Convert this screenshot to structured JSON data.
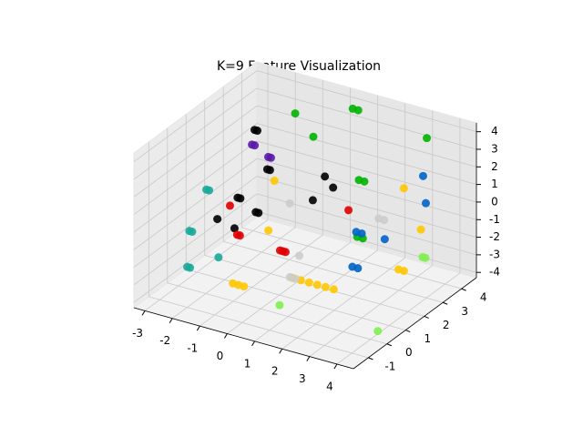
{
  "chart_data": {
    "type": "scatter3d",
    "title": "K=9 Feature Visualization",
    "xlim": [
      -3.4,
      4.6
    ],
    "ylim": [
      -1.8,
      4.8
    ],
    "zlim": [
      -4.3,
      4.5
    ],
    "xticks": [
      -3,
      -2,
      -1,
      0,
      1,
      2,
      3,
      4
    ],
    "yticks": [
      -1,
      0,
      1,
      2,
      3,
      4
    ],
    "zticks": [
      -4,
      -3,
      -2,
      -1,
      0,
      1,
      2,
      3,
      4
    ],
    "grid": true,
    "series": [
      {
        "color": "#000000",
        "x": [
          -2.6,
          -2.5,
          -1.8,
          -1.7,
          -2.2,
          -2.1,
          -2.6,
          -1.2,
          -1.1,
          -1.5,
          0.3,
          0.6,
          0.2
        ],
        "y": [
          3.5,
          3.5,
          3.0,
          3.0,
          2.0,
          2.0,
          1.5,
          1.5,
          1.5,
          0.8,
          3.0,
          3.0,
          2.5
        ],
        "z": [
          2.0,
          2.0,
          0.5,
          0.5,
          -0.5,
          -0.5,
          -1.5,
          -0.5,
          -0.5,
          -1.0,
          1.0,
          0.5,
          0.0
        ]
      },
      {
        "color": "#5a1aa8",
        "x": [
          -2.9,
          -2.8,
          -1.9,
          -1.8
        ],
        "y": [
          3.8,
          3.8,
          3.2,
          3.2
        ],
        "z": [
          0.8,
          0.8,
          1.0,
          1.0
        ]
      },
      {
        "color": "#1aa89a",
        "x": [
          -3.0,
          -2.9,
          -2.6,
          -2.5,
          -1.2,
          -2.0,
          -1.9
        ],
        "y": [
          1.5,
          1.5,
          0.0,
          0.0,
          -0.5,
          -1.0,
          -1.0
        ],
        "z": [
          0.0,
          0.0,
          -1.0,
          -1.0,
          -1.5,
          -2.0,
          -2.0
        ]
      },
      {
        "color": "#e00000",
        "x": [
          -1.8,
          -1.2,
          -1.1,
          0.5,
          0.6,
          0.7,
          1.5
        ],
        "y": [
          1.0,
          0.5,
          0.5,
          0.3,
          0.3,
          0.3,
          2.5
        ],
        "z": [
          0.0,
          -1.0,
          -1.0,
          -1.0,
          -1.0,
          -1.0,
          0.0
        ]
      },
      {
        "color": "#ffc800",
        "x": [
          -1.2,
          -0.4,
          -0.2,
          0.0,
          0.2,
          1.5,
          1.8,
          2.1,
          2.4,
          2.7,
          3.0,
          2.5,
          3.8,
          4.0,
          4.2
        ],
        "y": [
          2.5,
          1.0,
          -1.2,
          -1.2,
          -1.2,
          -0.5,
          -0.5,
          -0.5,
          -0.5,
          -0.5,
          -0.5,
          4.0,
          3.0,
          1.5,
          1.5
        ],
        "z": [
          0.5,
          -0.8,
          -2.0,
          -2.0,
          -2.0,
          -1.5,
          -1.5,
          -1.5,
          -1.5,
          -1.5,
          -1.5,
          0.5,
          -0.5,
          -1.5,
          -1.5
        ]
      },
      {
        "color": "#cccccc",
        "x": [
          -0.3,
          1.2,
          1.4,
          1.6,
          2.6,
          2.8
        ],
        "y": [
          2.0,
          0.3,
          -0.5,
          -0.5,
          2.5,
          2.5
        ],
        "z": [
          0.0,
          -1.0,
          -1.5,
          -1.5,
          0.0,
          0.0
        ]
      },
      {
        "color": "#00b400",
        "x": [
          -1.8,
          -0.8,
          0.5,
          0.7,
          1.2,
          1.4,
          2.5,
          2.7,
          3.2
        ],
        "y": [
          4.5,
          4.0,
          4.2,
          4.2,
          3.5,
          3.5,
          1.5,
          1.5,
          4.2
        ],
        "z": [
          2.5,
          2.0,
          4.0,
          4.0,
          0.8,
          0.8,
          -0.3,
          -0.3,
          3.5
        ]
      },
      {
        "color": "#0064c8",
        "x": [
          2.8,
          3.0,
          3.2,
          3.3,
          3.5,
          3.0,
          3.2
        ],
        "y": [
          1.0,
          1.0,
          4.0,
          4.0,
          1.5,
          0.5,
          0.5
        ],
        "z": [
          0.5,
          0.5,
          1.5,
          0.0,
          0.0,
          -1.0,
          -1.0
        ]
      },
      {
        "color": "#80f050",
        "x": [
          1.5,
          4.2,
          4.3,
          4.4
        ],
        "y": [
          -1.2,
          2.5,
          2.5,
          -0.2
        ],
        "z": [
          -2.5,
          -1.5,
          -1.5,
          -3.5
        ]
      }
    ]
  }
}
